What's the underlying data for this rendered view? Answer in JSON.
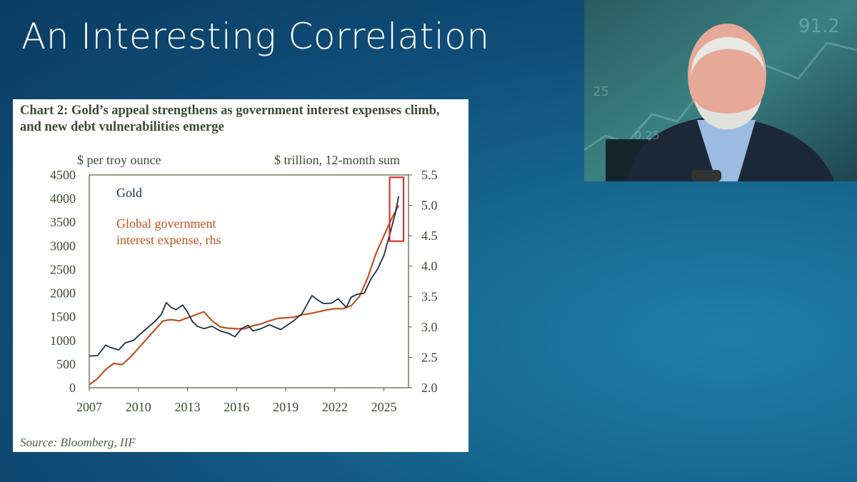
{
  "slide": {
    "title": "An Interesting Correlation"
  },
  "chart_data": {
    "type": "line",
    "title": "Chart 2: Gold’s appeal strengthens as government interest expenses climb, and new debt vulnerabilities emerge",
    "left_axis_label": "$ per troy ounce",
    "right_axis_label": "$ trillion, 12-month sum",
    "source": "Source: Bloomberg, IIF",
    "xlim": [
      2007,
      2026.5
    ],
    "x_ticks": [
      2007,
      2010,
      2013,
      2016,
      2019,
      2022,
      2025
    ],
    "x_tick_labels": [
      "2007",
      "2010",
      "2013",
      "2016",
      "2019",
      "2022",
      "2025"
    ],
    "left_ylim": [
      0,
      4500
    ],
    "left_ticks": [
      0,
      500,
      1000,
      1500,
      2000,
      2500,
      3000,
      3500,
      4000,
      4500
    ],
    "left_tick_labels": [
      "0",
      "500",
      "1000",
      "1500",
      "2000",
      "2500",
      "3000",
      "3500",
      "4000",
      "4500"
    ],
    "right_ylim": [
      2.0,
      5.5
    ],
    "right_ticks": [
      2.0,
      2.5,
      3.0,
      3.5,
      4.0,
      4.5,
      5.0,
      5.5
    ],
    "right_tick_labels": [
      "2.0",
      "2.5",
      "3.0",
      "3.5",
      "4.0",
      "4.5",
      "5.0",
      "5.5"
    ],
    "series": [
      {
        "name": "Gold",
        "axis": "left",
        "color": "#1b2e45",
        "x": [
          2007.0,
          2007.5,
          2008.0,
          2008.3,
          2008.8,
          2009.2,
          2009.7,
          2010.0,
          2010.5,
          2011.0,
          2011.4,
          2011.7,
          2012.0,
          2012.3,
          2012.7,
          2013.0,
          2013.3,
          2013.6,
          2014.0,
          2014.5,
          2015.0,
          2015.5,
          2015.9,
          2016.3,
          2016.7,
          2017.0,
          2017.5,
          2018.0,
          2018.7,
          2019.0,
          2019.5,
          2020.0,
          2020.6,
          2020.9,
          2021.3,
          2021.8,
          2022.2,
          2022.7,
          2023.0,
          2023.4,
          2023.8,
          2024.2,
          2024.6,
          2025.0,
          2025.4,
          2025.7,
          2025.9
        ],
        "values": [
          670,
          680,
          900,
          850,
          800,
          950,
          1000,
          1100,
          1250,
          1400,
          1550,
          1800,
          1700,
          1650,
          1750,
          1600,
          1400,
          1300,
          1250,
          1300,
          1200,
          1150,
          1080,
          1250,
          1320,
          1200,
          1250,
          1330,
          1230,
          1300,
          1420,
          1570,
          1950,
          1870,
          1780,
          1790,
          1880,
          1700,
          1920,
          1980,
          2000,
          2300,
          2500,
          2800,
          3300,
          3700,
          4050
        ]
      },
      {
        "name": "Global government interest expense, rhs",
        "axis": "right",
        "color": "#c0521f",
        "x": [
          2007.0,
          2007.5,
          2008.0,
          2008.5,
          2009.0,
          2009.5,
          2010.0,
          2010.5,
          2011.0,
          2011.5,
          2012.0,
          2012.5,
          2013.0,
          2013.5,
          2014.0,
          2014.5,
          2015.0,
          2015.5,
          2016.0,
          2016.5,
          2017.0,
          2017.5,
          2018.0,
          2018.5,
          2019.0,
          2019.5,
          2020.0,
          2020.5,
          2021.0,
          2021.5,
          2022.0,
          2022.5,
          2023.0,
          2023.5,
          2024.0,
          2024.5,
          2025.0,
          2025.5,
          2025.9
        ],
        "values": [
          2.05,
          2.15,
          2.3,
          2.4,
          2.38,
          2.5,
          2.65,
          2.8,
          2.95,
          3.1,
          3.12,
          3.1,
          3.15,
          3.2,
          3.25,
          3.1,
          3.0,
          2.98,
          2.97,
          2.97,
          3.02,
          3.05,
          3.1,
          3.14,
          3.15,
          3.16,
          3.2,
          3.22,
          3.25,
          3.28,
          3.3,
          3.3,
          3.35,
          3.5,
          3.8,
          4.2,
          4.5,
          4.8,
          5.0
        ]
      }
    ],
    "annotation": "highlight box around latest values (2025)"
  },
  "presenter": {
    "wall_text": [
      "91.2",
      "25",
      "0.25"
    ]
  }
}
